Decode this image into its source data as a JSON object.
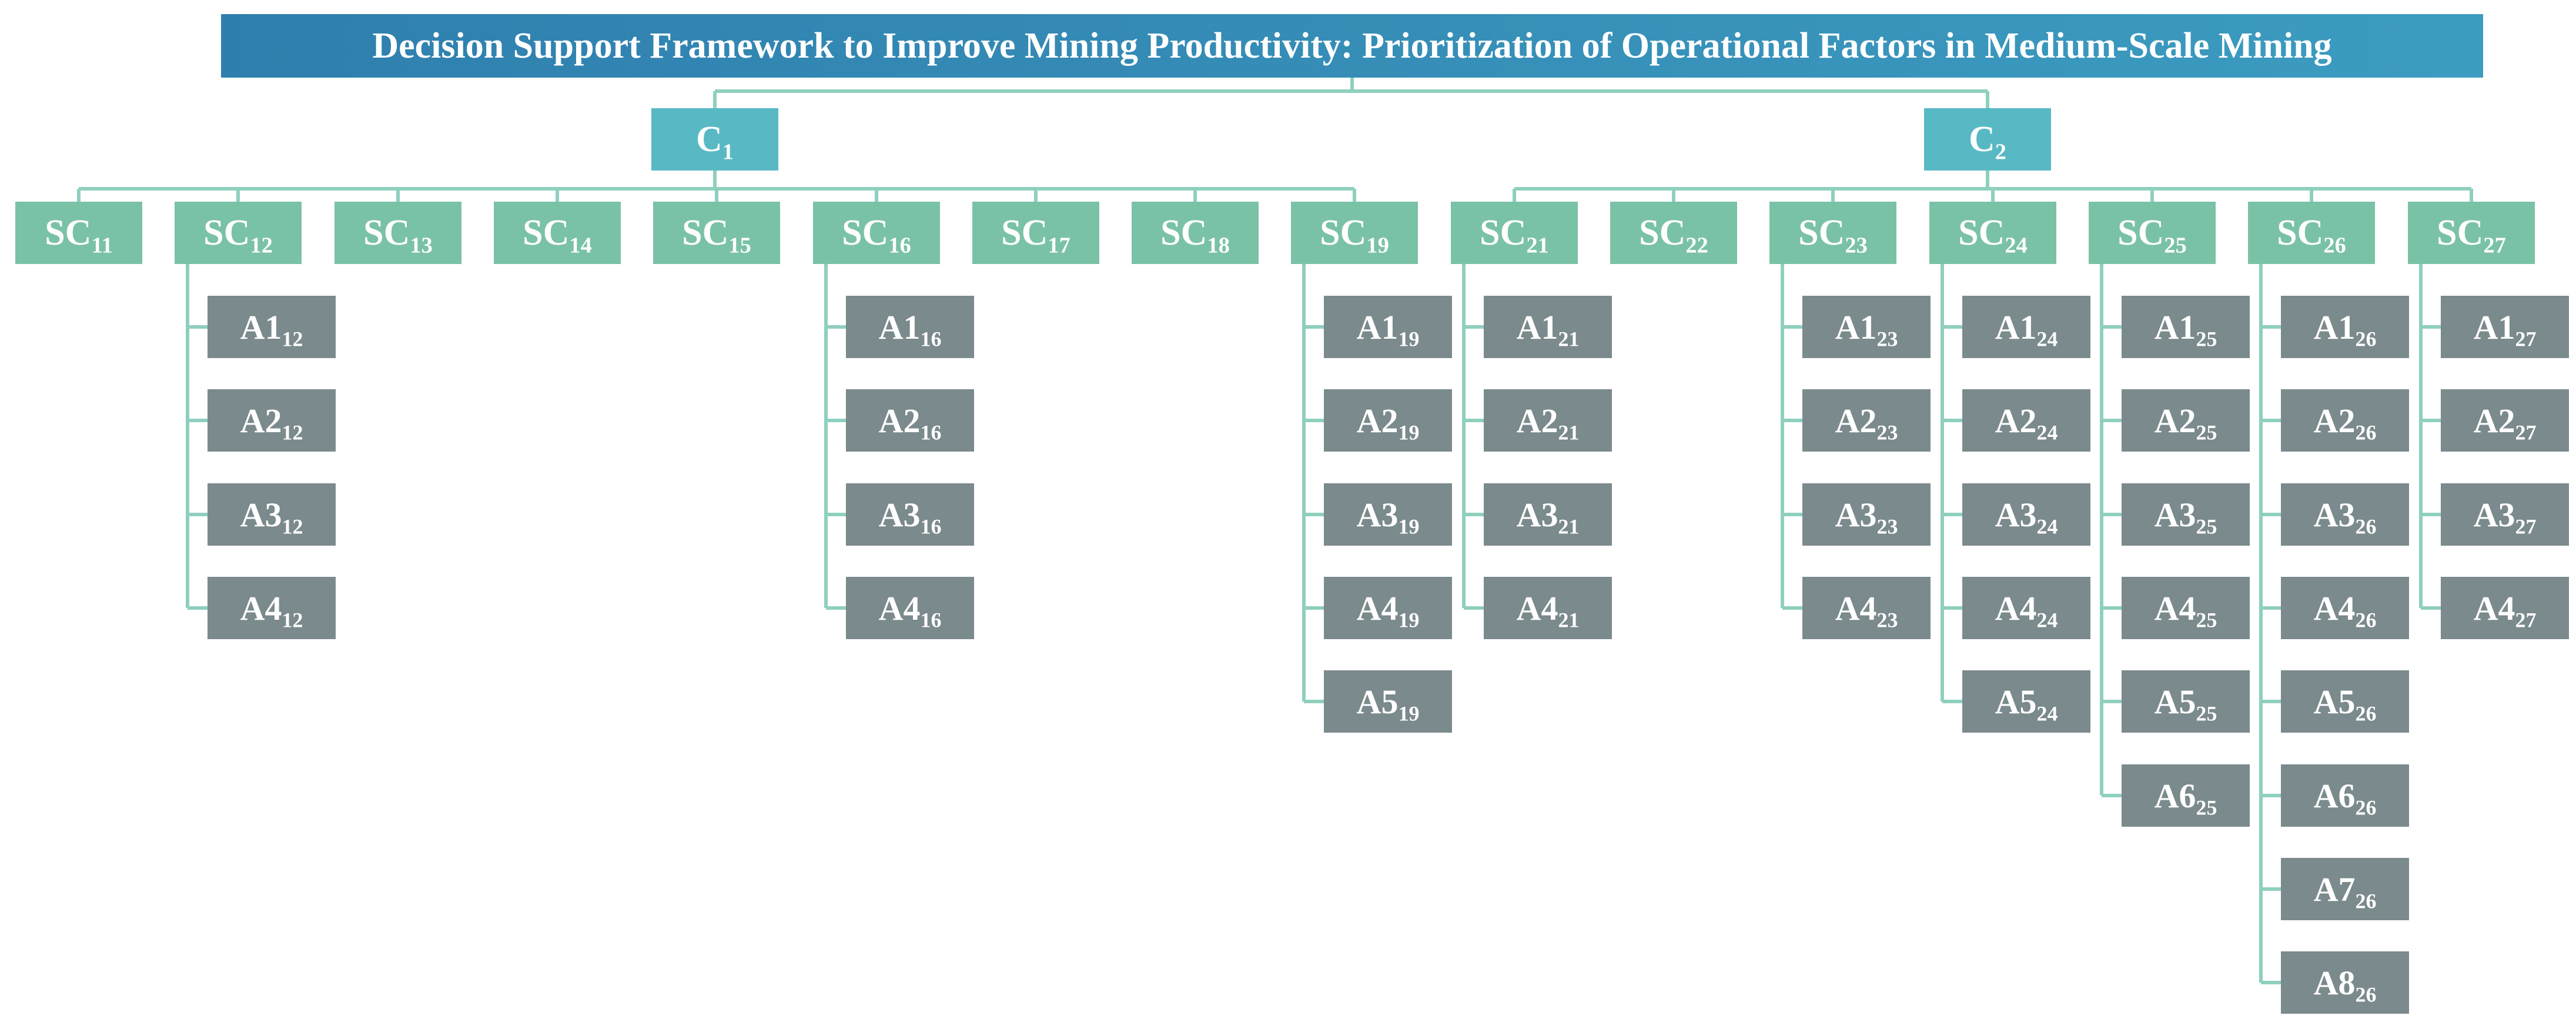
{
  "title": "Decision Support Framework to Improve Mining Productivity: Prioritization of Operational Factors in Medium-Scale Mining",
  "colors": {
    "goal": "#2f7fae",
    "criteria": "#58b9c4",
    "subcriteria": "#7ac2a6",
    "alternatives": "#7b8a8c",
    "connector": "#8fcfbf",
    "text": "#ffffff"
  },
  "criteria": [
    {
      "base": "C",
      "sub": "1",
      "subcriteria": [
        {
          "base": "SC",
          "sub": "11",
          "alternatives": []
        },
        {
          "base": "SC",
          "sub": "12",
          "alternatives": [
            "A1",
            "A2",
            "A3",
            "A4"
          ]
        },
        {
          "base": "SC",
          "sub": "13",
          "alternatives": []
        },
        {
          "base": "SC",
          "sub": "14",
          "alternatives": []
        },
        {
          "base": "SC",
          "sub": "15",
          "alternatives": []
        },
        {
          "base": "SC",
          "sub": "16",
          "alternatives": [
            "A1",
            "A2",
            "A3",
            "A4"
          ]
        },
        {
          "base": "SC",
          "sub": "17",
          "alternatives": []
        },
        {
          "base": "SC",
          "sub": "18",
          "alternatives": []
        },
        {
          "base": "SC",
          "sub": "19",
          "alternatives": [
            "A1",
            "A2",
            "A3",
            "A4",
            "A5"
          ]
        }
      ]
    },
    {
      "base": "C",
      "sub": "2",
      "subcriteria": [
        {
          "base": "SC",
          "sub": "21",
          "alternatives": [
            "A1",
            "A2",
            "A3",
            "A4"
          ]
        },
        {
          "base": "SC",
          "sub": "22",
          "alternatives": []
        },
        {
          "base": "SC",
          "sub": "23",
          "alternatives": [
            "A1",
            "A2",
            "A3",
            "A4"
          ]
        },
        {
          "base": "SC",
          "sub": "24",
          "alternatives": [
            "A1",
            "A2",
            "A3",
            "A4",
            "A5"
          ]
        },
        {
          "base": "SC",
          "sub": "25",
          "alternatives": [
            "A1",
            "A2",
            "A3",
            "A4",
            "A5",
            "A6"
          ]
        },
        {
          "base": "SC",
          "sub": "26",
          "alternatives": [
            "A1",
            "A2",
            "A3",
            "A4",
            "A5",
            "A6",
            "A7",
            "A8"
          ]
        },
        {
          "base": "SC",
          "sub": "27",
          "alternatives": [
            "A1",
            "A2",
            "A3",
            "A4"
          ]
        }
      ]
    }
  ]
}
